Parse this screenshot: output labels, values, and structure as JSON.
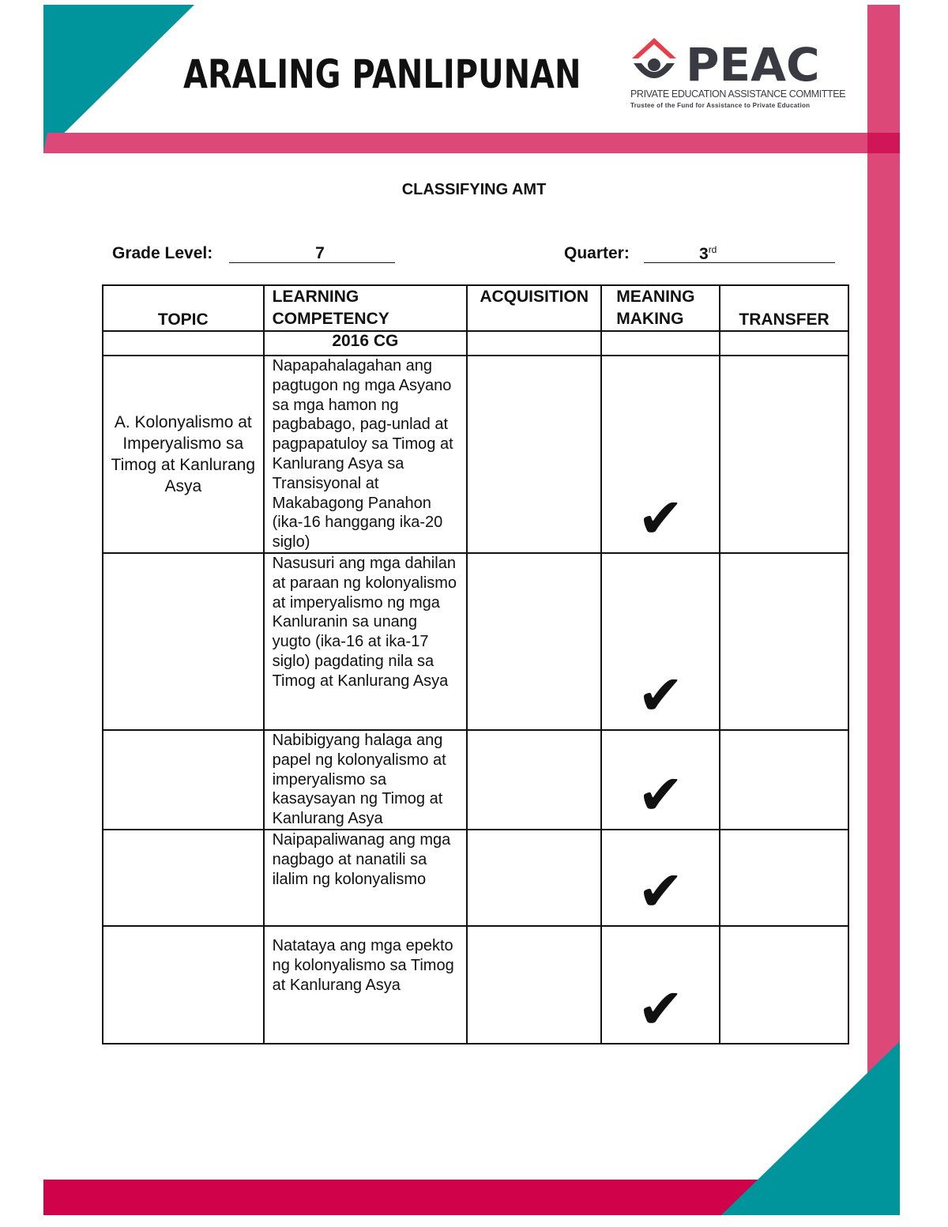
{
  "header": {
    "title": "ARALING PANLIPUNAN",
    "logo": {
      "name": "PEAC",
      "line1": "PRIVATE EDUCATION ASSISTANCE COMMITTEE",
      "line2": "Trustee of the Fund for Assistance to Private Education"
    }
  },
  "colors": {
    "teal": "#00959c",
    "pink": "#dc4878",
    "crimson": "#d0024a",
    "logo_red": "#e63e4a",
    "logo_dark": "#3a3b42"
  },
  "doc_title": "CLASSIFYING AMT",
  "grade_label": "Grade Level:",
  "grade_value": "7",
  "quarter_label": "Quarter:",
  "quarter_value": "3",
  "quarter_sup": "rd",
  "table": {
    "headers": [
      "TOPIC",
      "LEARNING COMPETENCY",
      "ACQUISITION",
      "MEANING MAKING",
      "TRANSFER"
    ],
    "subheader": "2016 CG",
    "topic": "A. Kolonyalismo at Imperyalismo sa Timog at Kanlurang Asya",
    "check_glyph": "✔",
    "rows": [
      {
        "competency": "Napapahalagahan ang pagtugon ng mga Asyano sa mga hamon ng pagbabago, pag-unlad at pagpapatuloy sa Timog at Kanlurang Asya sa Transisyonal at Makabagong Panahon (ika-16 hanggang ika-20 siglo)",
        "classification": "Meaning Making"
      },
      {
        "competency": "Nasusuri ang mga dahilan at paraan ng kolonyalismo at imperyalismo ng mga Kanluranin sa unang yugto (ika-16 at ika-17 siglo) pagdating nila sa Timog at Kanlurang Asya",
        "classification": "Meaning Making"
      },
      {
        "competency": "Nabibigyang halaga ang papel ng kolonyalismo at imperyalismo sa kasaysayan ng Timog at Kanlurang Asya",
        "classification": "Meaning Making"
      },
      {
        "competency": "Naipapaliwanag ang mga nagbago at nanatili sa ilalim ng kolonyalismo",
        "classification": "Meaning Making"
      },
      {
        "competency": "Natataya ang mga epekto ng kolonyalismo sa Timog at Kanlurang Asya",
        "classification": "Meaning Making"
      }
    ]
  }
}
